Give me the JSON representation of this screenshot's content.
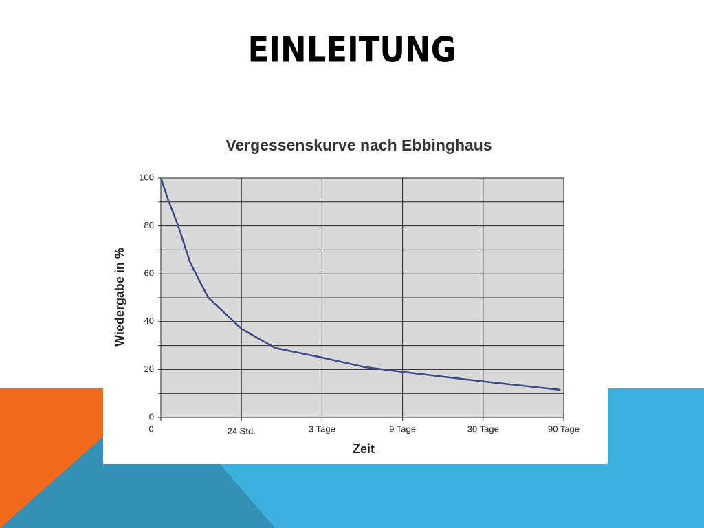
{
  "slide_title": "EINLEITUNG",
  "chart_data": {
    "type": "line",
    "title": "Vergessenskurve nach Ebbinghaus",
    "x_label": "Zeit",
    "y_label": "Wiedergabe in %",
    "x": [
      0,
      0.09,
      0.22,
      0.36,
      0.48,
      0.59,
      0.78,
      1,
      1.42,
      2,
      2.53,
      3,
      4,
      4.96
    ],
    "series": [
      {
        "color": "#3b4a8a",
        "values": [
          100,
          91,
          79.6,
          65,
          57,
          50,
          44,
          37,
          29,
          25,
          21,
          19,
          15,
          11.5
        ]
      }
    ],
    "xlim": [
      0,
      5
    ],
    "xticks": [
      0,
      {
        "value": 1,
        "label": "24 Std."
      },
      {
        "value": 2,
        "label": "3 Tage"
      },
      {
        "value": 3,
        "label": "9 Tage"
      },
      {
        "value": 4,
        "label": "30 Tage"
      },
      {
        "value": 5,
        "label": "90 Tage"
      }
    ],
    "ylim": [
      0,
      100
    ],
    "yticks": [
      0,
      20,
      40,
      60,
      80,
      100
    ],
    "y_minor_ticks": [
      10,
      30,
      50,
      70,
      90
    ],
    "grid": true,
    "plot_background": "#d9d9d9"
  }
}
